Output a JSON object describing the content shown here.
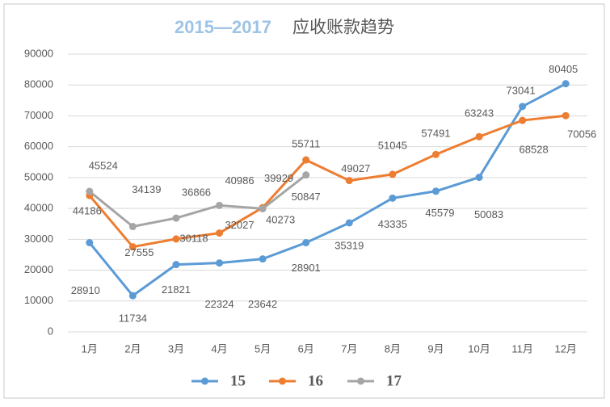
{
  "chart_data": {
    "type": "line",
    "title": [
      "2015—2017",
      "应收账款趋势"
    ],
    "categories": [
      "1月",
      "2月",
      "3月",
      "4月",
      "5月",
      "6月",
      "7月",
      "8月",
      "9月",
      "10月",
      "11月",
      "12月"
    ],
    "series": [
      {
        "name": "15",
        "color": "#5b9bd5",
        "values": [
          28910,
          11734,
          21821,
          22324,
          23642,
          28901,
          35319,
          43335,
          45579,
          50083,
          73041,
          80405
        ]
      },
      {
        "name": "16",
        "color": "#ed7d31",
        "values": [
          44186,
          27555,
          30118,
          32027,
          40273,
          55711,
          49027,
          51045,
          57491,
          63243,
          68528,
          70056
        ]
      },
      {
        "name": "17",
        "color": "#a5a5a5",
        "values": [
          45524,
          34139,
          36866,
          40986,
          39929,
          50847,
          null,
          null,
          null,
          null,
          null,
          null
        ]
      }
    ],
    "ylim": [
      0,
      90000
    ],
    "yticks": [
      0,
      10000,
      20000,
      30000,
      40000,
      50000,
      60000,
      70000,
      80000,
      90000
    ],
    "grid": true,
    "legend": "bottom"
  }
}
